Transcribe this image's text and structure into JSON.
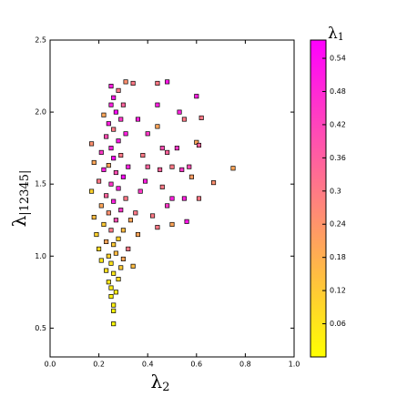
{
  "chart_data": {
    "type": "scatter",
    "xlabel": {
      "symbol": "λ",
      "subscript": "2"
    },
    "ylabel": {
      "symbol": "λ",
      "subscript": "|12345|"
    },
    "colorbar_label": {
      "symbol": "λ",
      "subscript": "1"
    },
    "colormap": "spring",
    "edgecolor": "#000000",
    "x": [
      0.26,
      0.26,
      0.26,
      0.25,
      0.27,
      0.25,
      0.24,
      0.28,
      0.26,
      0.23,
      0.29,
      0.25,
      0.21,
      0.3,
      0.24,
      0.27,
      0.2,
      0.32,
      0.26,
      0.23,
      0.28,
      0.19,
      0.25,
      0.3,
      0.22,
      0.27,
      0.18,
      0.33,
      0.24,
      0.29,
      0.21,
      0.26,
      0.31,
      0.23,
      0.17,
      0.28,
      0.25,
      0.2,
      0.3,
      0.27,
      0.22,
      0.24,
      0.32,
      0.18,
      0.26,
      0.29,
      0.21,
      0.25,
      0.17,
      0.28,
      0.23,
      0.31,
      0.26,
      0.24,
      0.29,
      0.22,
      0.27,
      0.25,
      0.3,
      0.26,
      0.28,
      0.25,
      0.31,
      0.34,
      0.36,
      0.38,
      0.4,
      0.37,
      0.35,
      0.36,
      0.34,
      0.4,
      0.44,
      0.48,
      0.44,
      0.44,
      0.48,
      0.5,
      0.46,
      0.45,
      0.48,
      0.44,
      0.5,
      0.5,
      0.55,
      0.56,
      0.53,
      0.55,
      0.54,
      0.57,
      0.58,
      0.6,
      0.61,
      0.6,
      0.62,
      0.61,
      0.67,
      0.75,
      0.42,
      0.52,
      0.39,
      0.46
    ],
    "values": [
      0.53,
      0.62,
      0.66,
      0.72,
      0.75,
      0.78,
      0.82,
      0.84,
      0.88,
      0.9,
      0.92,
      0.95,
      0.97,
      0.98,
      1.0,
      1.02,
      1.05,
      1.05,
      1.08,
      1.1,
      1.12,
      1.15,
      1.18,
      1.18,
      1.22,
      1.25,
      1.27,
      1.25,
      1.3,
      1.32,
      1.35,
      1.38,
      1.4,
      1.42,
      1.45,
      1.47,
      1.5,
      1.52,
      1.55,
      1.58,
      1.6,
      1.63,
      1.62,
      1.65,
      1.68,
      1.7,
      1.72,
      1.75,
      1.78,
      1.8,
      1.83,
      1.85,
      1.88,
      1.92,
      1.95,
      1.98,
      2.0,
      2.05,
      2.05,
      2.1,
      2.15,
      2.18,
      2.21,
      2.2,
      1.95,
      1.7,
      1.62,
      1.45,
      1.3,
      1.15,
      0.93,
      1.85,
      2.2,
      2.21,
      2.05,
      1.9,
      1.72,
      1.62,
      1.75,
      1.6,
      1.35,
      1.2,
      1.4,
      1.22,
      1.4,
      1.24,
      2.0,
      1.95,
      1.6,
      1.62,
      1.55,
      1.79,
      1.77,
      2.11,
      1.96,
      1.4,
      1.51,
      1.61,
      1.28,
      1.75,
      1.52,
      1.48
    ],
    "color_values": [
      0.01,
      0.02,
      0.03,
      0.03,
      0.05,
      0.04,
      0.06,
      0.08,
      0.05,
      0.07,
      0.12,
      0.06,
      0.05,
      0.2,
      0.1,
      0.15,
      0.08,
      0.3,
      0.12,
      0.2,
      0.1,
      0.1,
      0.3,
      0.15,
      0.12,
      0.4,
      0.15,
      0.2,
      0.25,
      0.45,
      0.2,
      0.5,
      0.3,
      0.35,
      0.1,
      0.5,
      0.45,
      0.3,
      0.55,
      0.4,
      0.5,
      0.2,
      0.5,
      0.2,
      0.55,
      0.3,
      0.45,
      0.5,
      0.25,
      0.52,
      0.4,
      0.5,
      0.3,
      0.5,
      0.45,
      0.2,
      0.55,
      0.5,
      0.35,
      0.52,
      0.3,
      0.5,
      0.25,
      0.3,
      0.5,
      0.3,
      0.35,
      0.45,
      0.3,
      0.2,
      0.15,
      0.45,
      0.3,
      0.52,
      0.5,
      0.2,
      0.35,
      0.3,
      0.4,
      0.35,
      0.45,
      0.3,
      0.5,
      0.2,
      0.5,
      0.52,
      0.5,
      0.3,
      0.45,
      0.4,
      0.22,
      0.2,
      0.35,
      0.5,
      0.3,
      0.3,
      0.25,
      0.2,
      0.3,
      0.45,
      0.5,
      0.3
    ],
    "xlim": [
      0,
      1
    ],
    "xticks": [
      {
        "value": 0,
        "label": "0.0"
      },
      0.2,
      0.4,
      0.6,
      0.8,
      {
        "value": 1,
        "label": "1.0"
      }
    ],
    "ylim": [
      0.3,
      2.5
    ],
    "yticks": [
      0.5,
      {
        "value": 1,
        "label": "1.0"
      },
      1.5,
      {
        "value": 2,
        "label": "2.0"
      },
      2.5
    ],
    "clim": [
      0,
      0.573
    ],
    "cticks": [
      0.06,
      0.12,
      0.18,
      0.24,
      0.3,
      0.36,
      0.42,
      0.48,
      0.54
    ]
  }
}
